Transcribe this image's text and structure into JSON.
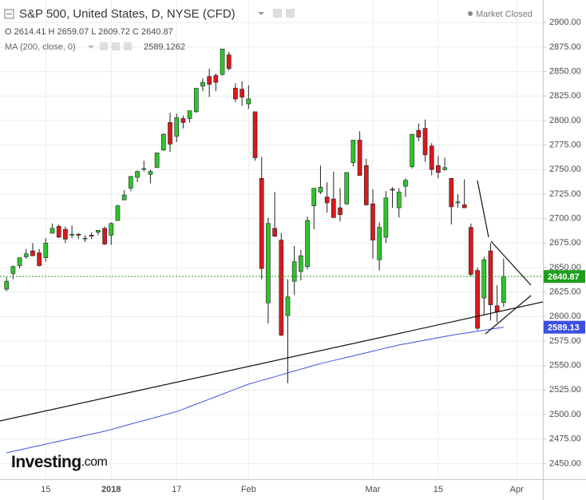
{
  "chart_data": {
    "type": "candlestick",
    "title": "S&P 500, United States, D, NYSE (CFD)",
    "status": "Market Closed",
    "ohlc_labels": [
      "O",
      "H",
      "L",
      "C"
    ],
    "brand": {
      "name": "Investing",
      "suffix": ".com"
    },
    "up_color": "#2ec52e",
    "down_color": "#d9191c",
    "open": [
      2628,
      2644,
      2652,
      2661,
      2667,
      2665,
      2660,
      2685,
      2692,
      2689,
      2683,
      2684,
      2680,
      2683,
      2686,
      2690,
      2683,
      2698,
      2719,
      2731,
      2742,
      2751,
      2745,
      2752,
      2770,
      2798,
      2784,
      2802,
      2802,
      2809,
      2835,
      2845,
      2846,
      2847,
      2867,
      2833,
      2832,
      2817,
      2809,
      2741,
      2614,
      2690,
      2678,
      2601,
      2636,
      2646,
      2651,
      2713,
      2727,
      2722,
      2720,
      2711,
      2715,
      2757,
      2780,
      2754,
      2715,
      2658,
      2681,
      2730,
      2711,
      2733,
      2753,
      2790,
      2792,
      2774,
      2754,
      2750,
      2741,
      2716,
      2714,
      2691,
      2647,
      2619,
      2667,
      2611,
      2614.41
    ],
    "high": [
      2640,
      2652,
      2660,
      2669,
      2675,
      2669,
      2680,
      2695,
      2694,
      2692,
      2693,
      2685,
      2683,
      2686,
      2688,
      2692,
      2696,
      2714,
      2729,
      2743,
      2749,
      2759,
      2750,
      2767,
      2787,
      2808,
      2807,
      2805,
      2810,
      2833,
      2843,
      2853,
      2848,
      2873,
      2870,
      2838,
      2840,
      2836,
      2809,
      2763,
      2701,
      2727,
      2685,
      2638,
      2672,
      2668,
      2702,
      2731,
      2754,
      2737,
      2748,
      2731,
      2747,
      2780,
      2789,
      2761,
      2730,
      2696,
      2728,
      2732,
      2731,
      2741,
      2786,
      2797,
      2801,
      2777,
      2764,
      2762,
      2741,
      2725,
      2740,
      2695,
      2650,
      2661,
      2675,
      2632,
      2659.07
    ],
    "low": [
      2626,
      2638,
      2649,
      2659,
      2662,
      2651,
      2656,
      2685,
      2680,
      2675,
      2680,
      2679,
      2676,
      2679,
      2683,
      2673,
      2673,
      2698,
      2719,
      2728,
      2737,
      2748,
      2736,
      2752,
      2769,
      2768,
      2778,
      2792,
      2798,
      2808,
      2830,
      2824,
      2830,
      2846,
      2851,
      2819,
      2815,
      2812,
      2759,
      2638,
      2593,
      2681,
      2580,
      2532,
      2622,
      2637,
      2648,
      2689,
      2725,
      2706,
      2701,
      2697,
      2714,
      2753,
      2744,
      2713,
      2659,
      2647,
      2675,
      2711,
      2701,
      2722,
      2751,
      2779,
      2758,
      2744,
      2741,
      2749,
      2694,
      2711,
      2711,
      2641,
      2586,
      2601,
      2596,
      2594,
      2609.72
    ],
    "close": [
      2636,
      2651,
      2660,
      2664,
      2662,
      2652,
      2675,
      2690,
      2681,
      2679,
      2684,
      2683,
      2680,
      2682,
      2688,
      2674,
      2695,
      2713,
      2724,
      2743,
      2748,
      2751,
      2748,
      2767,
      2786,
      2776,
      2803,
      2798,
      2810,
      2833,
      2839,
      2837,
      2839,
      2873,
      2853,
      2822,
      2824,
      2822,
      2762,
      2649,
      2695,
      2682,
      2581,
      2620,
      2656,
      2662,
      2698,
      2731,
      2732,
      2716,
      2701,
      2704,
      2747,
      2780,
      2744,
      2714,
      2678,
      2691,
      2721,
      2729,
      2727,
      2739,
      2786,
      2783,
      2765,
      2750,
      2747,
      2752,
      2712,
      2717,
      2711,
      2643,
      2588,
      2658,
      2612,
      2605,
      2640.87
    ],
    "ma": {
      "name": "MA (200, close, 0)",
      "color": "#3d4fe0",
      "last_label": "2589.13",
      "values": [
        2461,
        2462.5,
        2464,
        2465.4,
        2466.9,
        2468.3,
        2469.8,
        2471.3,
        2472.7,
        2474.2,
        2475.7,
        2477.1,
        2478.6,
        2480.1,
        2481.5,
        2483,
        2484.8,
        2486.6,
        2488.5,
        2490.3,
        2492.1,
        2493.9,
        2495.7,
        2497.5,
        2499.4,
        2501.2,
        2503,
        2505.5,
        2508.1,
        2510.6,
        2513.2,
        2515.7,
        2518.3,
        2520.8,
        2523.4,
        2525.9,
        2528.5,
        2531,
        2532.9,
        2534.8,
        2536.7,
        2538.6,
        2540.5,
        2542.5,
        2544.4,
        2546.3,
        2548.2,
        2550.1,
        2552,
        2553.6,
        2555.2,
        2556.8,
        2558.3,
        2559.9,
        2561.5,
        2563.1,
        2564.7,
        2566.3,
        2567.8,
        2569.4,
        2571,
        2572.2,
        2573.4,
        2574.7,
        2575.9,
        2577.1,
        2578.3,
        2579.6,
        2580.8,
        2582,
        2583,
        2584,
        2585.1,
        2586.1,
        2587.1,
        2588.1,
        2589.1262
      ]
    },
    "close_line_color": "#1e9e1e",
    "xlim": [
      -1,
      82
    ],
    "xticks": [
      {
        "value": 6,
        "label": "15"
      },
      {
        "value": 16,
        "label": "2018"
      },
      {
        "value": 26,
        "label": "17"
      },
      {
        "value": 37,
        "label": "Feb"
      },
      {
        "value": 56,
        "label": "Mar"
      },
      {
        "value": 66,
        "label": "15"
      },
      {
        "value": 78,
        "label": "Apr"
      }
    ],
    "ylim": [
      2434,
      2923
    ],
    "yticks": [
      {
        "value": 2450,
        "label": "2450.00"
      },
      {
        "value": 2475,
        "label": "2475.00"
      },
      {
        "value": 2500,
        "label": "2500.00"
      },
      {
        "value": 2525,
        "label": "2525.00"
      },
      {
        "value": 2550,
        "label": "2550.00"
      },
      {
        "value": 2575,
        "label": "2575.00"
      },
      {
        "value": 2600,
        "label": "2600.00"
      },
      {
        "value": 2625,
        "label": "2625.00"
      },
      {
        "value": 2650,
        "label": "2650.00"
      },
      {
        "value": 2675,
        "label": "2675.00"
      },
      {
        "value": 2700,
        "label": "2700.00"
      },
      {
        "value": 2725,
        "label": "2725.00"
      },
      {
        "value": 2750,
        "label": "2750.00"
      },
      {
        "value": 2775,
        "label": "2775.00"
      },
      {
        "value": 2800,
        "label": "2800.00"
      },
      {
        "value": 2825,
        "label": "2825.00"
      },
      {
        "value": 2850,
        "label": "2850.00"
      },
      {
        "value": 2875,
        "label": "2875.00"
      },
      {
        "value": 2900,
        "label": "2900.00"
      }
    ],
    "grid": true
  }
}
